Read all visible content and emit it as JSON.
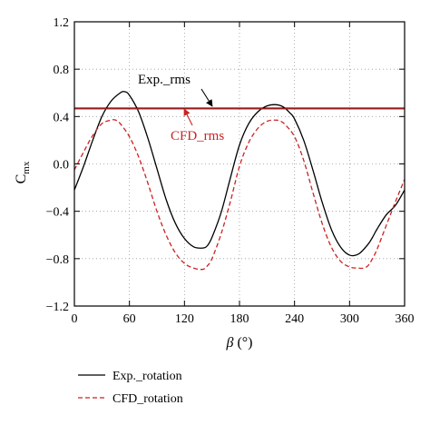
{
  "chart_data": {
    "type": "line",
    "xlabel_symbol": "β",
    "xlabel_unit": "(°)",
    "ylabel_main": "C",
    "ylabel_sub": "mx",
    "xlim": [
      0,
      360
    ],
    "ylim": [
      -1.2,
      1.2
    ],
    "grid": true,
    "grid_style": "dotted",
    "x_ticks": [
      0,
      60,
      120,
      180,
      240,
      300,
      360
    ],
    "x_tick_labels": [
      "0",
      "60",
      "120",
      "180",
      "240",
      "300",
      "360"
    ],
    "y_ticks": [
      -1.2,
      -0.8,
      -0.4,
      0.0,
      0.4,
      0.8,
      1.2
    ],
    "y_tick_labels": [
      "−1.2",
      "−0.8",
      "−0.4",
      "0.0",
      "0.4",
      "0.8",
      "1.2"
    ],
    "series": [
      {
        "name": "Exp._rotation",
        "color": "#000000",
        "dash": "solid",
        "x": [
          0,
          10,
          20,
          30,
          40,
          50,
          55,
          60,
          70,
          80,
          90,
          100,
          110,
          120,
          130,
          140,
          145,
          150,
          160,
          170,
          180,
          190,
          200,
          210,
          220,
          228,
          235,
          240,
          250,
          260,
          270,
          280,
          290,
          300,
          310,
          320,
          325,
          330,
          340,
          350,
          360
        ],
        "y": [
          -0.22,
          -0.02,
          0.2,
          0.4,
          0.53,
          0.6,
          0.61,
          0.58,
          0.44,
          0.22,
          -0.04,
          -0.3,
          -0.5,
          -0.63,
          -0.7,
          -0.71,
          -0.69,
          -0.62,
          -0.41,
          -0.12,
          0.16,
          0.34,
          0.44,
          0.49,
          0.5,
          0.48,
          0.43,
          0.38,
          0.2,
          -0.05,
          -0.32,
          -0.55,
          -0.7,
          -0.77,
          -0.76,
          -0.68,
          -0.62,
          -0.55,
          -0.43,
          -0.35,
          -0.22
        ]
      },
      {
        "name": "CFD_rotation",
        "color": "#cc2222",
        "dash": "dashed",
        "x": [
          0,
          10,
          20,
          30,
          40,
          45,
          50,
          60,
          70,
          80,
          90,
          100,
          110,
          120,
          130,
          140,
          145,
          150,
          160,
          170,
          180,
          190,
          200,
          210,
          220,
          225,
          230,
          240,
          250,
          260,
          270,
          280,
          290,
          300,
          310,
          315,
          320,
          325,
          330,
          340,
          350,
          360
        ],
        "y": [
          -0.05,
          0.1,
          0.24,
          0.34,
          0.37,
          0.37,
          0.34,
          0.23,
          0.06,
          -0.16,
          -0.4,
          -0.6,
          -0.75,
          -0.84,
          -0.88,
          -0.89,
          -0.86,
          -0.8,
          -0.59,
          -0.32,
          -0.02,
          0.18,
          0.3,
          0.36,
          0.37,
          0.36,
          0.33,
          0.23,
          0.03,
          -0.24,
          -0.5,
          -0.7,
          -0.82,
          -0.87,
          -0.88,
          -0.88,
          -0.86,
          -0.8,
          -0.72,
          -0.52,
          -0.32,
          -0.13
        ]
      },
      {
        "name": "Exp._rms",
        "color": "#000000",
        "dash": "solid",
        "x": [
          0,
          360
        ],
        "y": [
          0.47,
          0.47
        ]
      },
      {
        "name": "CFD_rms",
        "color": "#cc2222",
        "dash": "solid",
        "x": [
          0,
          360
        ],
        "y": [
          0.465,
          0.465
        ]
      }
    ],
    "annotations": [
      {
        "text": "Exp._rms",
        "color": "#000000",
        "points_to": [
          150,
          0.47
        ]
      },
      {
        "text": "CFD_rms",
        "color": "#cc2222",
        "points_to": [
          122,
          0.465
        ]
      }
    ],
    "legend": {
      "placement": "bottom-left, below plot",
      "entries": [
        {
          "label": "Exp._rotation",
          "color": "#000000",
          "dash": "solid"
        },
        {
          "label": "CFD_rotation",
          "color": "#cc2222",
          "dash": "dashed"
        }
      ]
    }
  }
}
